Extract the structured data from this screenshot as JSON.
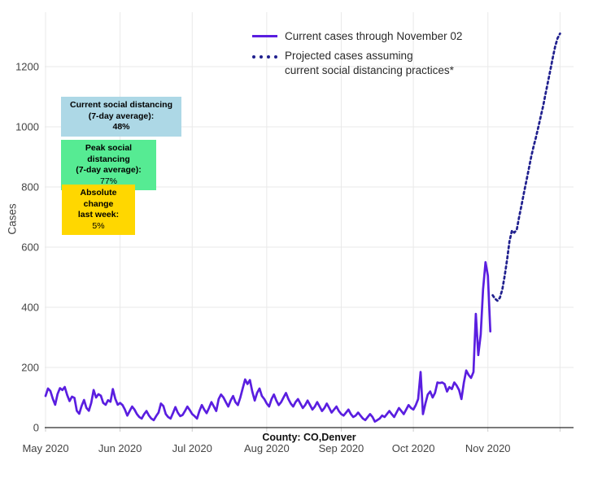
{
  "chart_data": {
    "type": "line",
    "title": "",
    "xlabel": "County: CO,Denver",
    "ylabel": "Cases",
    "grid": true,
    "legend_position": "top-center",
    "ylim": [
      0,
      1380
    ],
    "y_ticks": [
      0,
      200,
      400,
      600,
      800,
      1000,
      1200
    ],
    "x_ticks": [
      {
        "date": "2020-05-01",
        "label": "May 2020"
      },
      {
        "date": "2020-06-01",
        "label": "Jun 2020"
      },
      {
        "date": "2020-07-01",
        "label": "Jul 2020"
      },
      {
        "date": "2020-08-01",
        "label": "Aug 2020"
      },
      {
        "date": "2020-09-01",
        "label": "Sep 2020"
      },
      {
        "date": "2020-10-01",
        "label": "Oct 2020"
      },
      {
        "date": "2020-11-01",
        "label": "Nov 2020"
      },
      {
        "date": "2020-12-01",
        "label": ""
      }
    ],
    "series": [
      {
        "name": "Current cases through November 02",
        "style": "solid",
        "color": "#5a1ee0",
        "frequency": "daily",
        "start_date": "2020-05-01",
        "end_date": "2020-11-02",
        "values": [
          105,
          130,
          122,
          96,
          76,
          112,
          131,
          125,
          135,
          108,
          88,
          103,
          99,
          56,
          46,
          72,
          92,
          66,
          56,
          82,
          125,
          100,
          111,
          106,
          82,
          76,
          91,
          86,
          128,
          96,
          76,
          82,
          75,
          60,
          40,
          55,
          70,
          60,
          45,
          35,
          30,
          45,
          55,
          40,
          30,
          25,
          38,
          50,
          80,
          72,
          45,
          35,
          30,
          48,
          68,
          50,
          38,
          42,
          55,
          70,
          58,
          45,
          38,
          30,
          55,
          75,
          60,
          48,
          65,
          85,
          70,
          55,
          95,
          110,
          100,
          85,
          70,
          90,
          105,
          85,
          75,
          100,
          130,
          160,
          145,
          158,
          120,
          90,
          115,
          130,
          105,
          95,
          80,
          70,
          95,
          110,
          90,
          75,
          85,
          100,
          115,
          95,
          80,
          70,
          85,
          95,
          80,
          65,
          75,
          90,
          75,
          60,
          70,
          85,
          70,
          55,
          65,
          80,
          65,
          50,
          60,
          70,
          55,
          45,
          40,
          50,
          60,
          45,
          35,
          40,
          50,
          40,
          30,
          25,
          35,
          45,
          35,
          20,
          25,
          30,
          40,
          35,
          45,
          55,
          45,
          35,
          50,
          65,
          55,
          45,
          60,
          75,
          65,
          60,
          75,
          95,
          185,
          45,
          80,
          110,
          120,
          100,
          115,
          150,
          148,
          150,
          145,
          120,
          135,
          128,
          150,
          140,
          125,
          95,
          150,
          190,
          175,
          165,
          185,
          378,
          241,
          310,
          460,
          550,
          505,
          320
        ]
      },
      {
        "name": "Projected cases assuming current social distancing practices*",
        "style": "dotted",
        "color": "#20208e",
        "frequency": "daily",
        "start_date": "2020-11-03",
        "end_date": "2020-12-01",
        "values": [
          440,
          428,
          422,
          432,
          460,
          505,
          560,
          620,
          655,
          648,
          658,
          700,
          740,
          780,
          820,
          860,
          900,
          935,
          965,
          1000,
          1035,
          1070,
          1110,
          1150,
          1190,
          1230,
          1268,
          1295,
          1310
        ]
      }
    ]
  },
  "legend": {
    "item1_label": "Current cases through November 02",
    "item2_line1": "Projected cases assuming",
    "item2_line2": "current social distancing practices*"
  },
  "annotations": [
    {
      "line1": "Current social distancing",
      "line2": "(7-day average):",
      "value": "48%",
      "bg": "#add8e6"
    },
    {
      "line1": "Peak social distancing",
      "line2": "(7-day average):",
      "value": "77%",
      "bg": "#56eb93"
    },
    {
      "line1": "Absolute change",
      "line2": "last week:",
      "value": "5%",
      "bg": "#ffd700"
    }
  ],
  "axes": {
    "x_title": "County: CO,Denver",
    "y_title": "Cases"
  },
  "colors": {
    "current_line": "#5a1ee0",
    "projected_line": "#20208e",
    "gridline": "#e9e9e9",
    "axis_line": "#2a2a2a",
    "tick_label": "#444444"
  }
}
